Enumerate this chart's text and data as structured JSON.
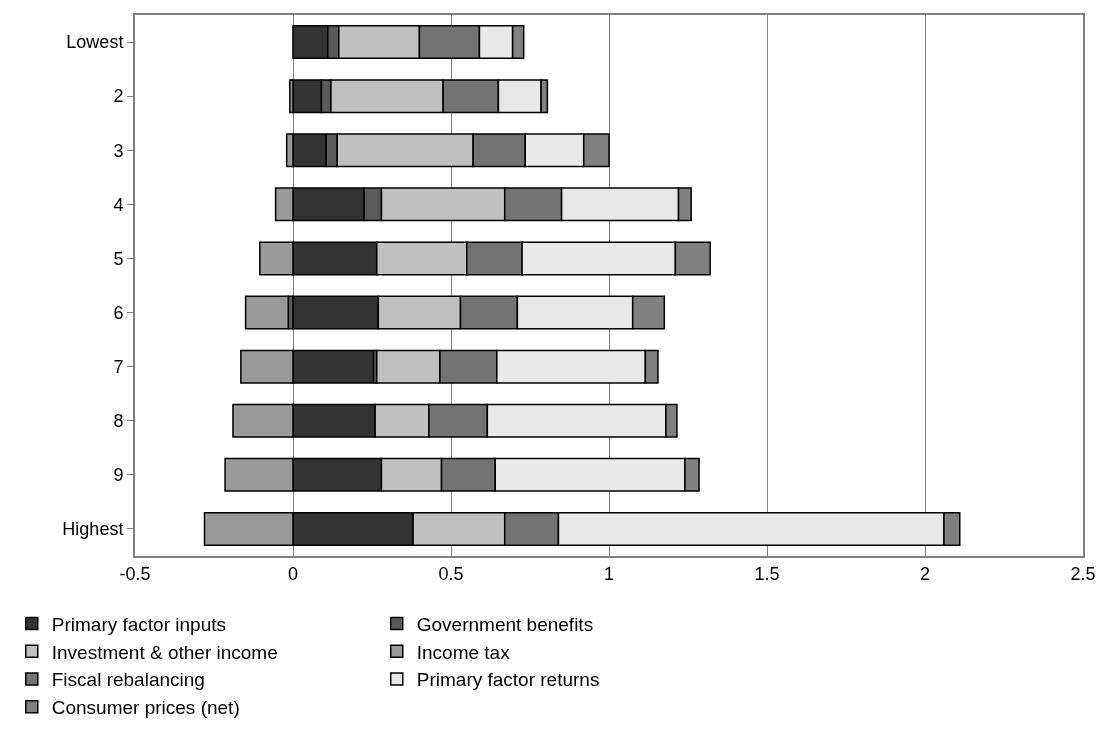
{
  "chart_data": {
    "type": "bar",
    "orientation": "horizontal",
    "stacked": true,
    "categories": [
      "Lowest",
      "2",
      "3",
      "4",
      "5",
      "6",
      "7",
      "8",
      "9",
      "Highest"
    ],
    "series": [
      {
        "name": "Primary factor inputs",
        "color": "#333333",
        "values": [
          0.11,
          0.09,
          0.105,
          0.225,
          0.265,
          0.27,
          0.255,
          0.26,
          0.28,
          0.38
        ]
      },
      {
        "name": "Government benefits",
        "color": "#5a5a5a",
        "values": [
          0.035,
          0.03,
          0.035,
          0.055,
          null,
          -0.015,
          0.01,
          null,
          null,
          null
        ]
      },
      {
        "name": "Investment & other income",
        "color": "#c0c0c0",
        "values": [
          0.255,
          0.355,
          0.43,
          0.39,
          0.285,
          0.26,
          0.2,
          0.17,
          0.19,
          0.29
        ]
      },
      {
        "name": "Income tax",
        "color": "#9a9a9a",
        "values": [
          null,
          -0.01,
          -0.02,
          -0.055,
          -0.105,
          -0.135,
          -0.165,
          -0.19,
          -0.215,
          -0.28
        ]
      },
      {
        "name": "Fiscal rebalancing",
        "color": "#737373",
        "values": [
          0.19,
          0.175,
          0.165,
          0.18,
          0.175,
          0.18,
          0.18,
          0.185,
          0.17,
          0.17
        ]
      },
      {
        "name": "Primary factor returns",
        "color": "#e8e8e8",
        "values": [
          0.105,
          0.135,
          0.185,
          0.37,
          0.485,
          0.365,
          0.47,
          0.565,
          0.6,
          1.22
        ]
      },
      {
        "name": "Consumer prices (net)",
        "color": "#808080",
        "values": [
          0.035,
          0.02,
          0.08,
          0.04,
          0.11,
          0.1,
          0.04,
          0.035,
          0.045,
          0.05
        ]
      }
    ],
    "xlim": [
      -0.5,
      2.5
    ],
    "xticks": [
      -0.5,
      0,
      0.5,
      1,
      1.5,
      2,
      2.5
    ],
    "grid": "x",
    "legend": "bottom"
  }
}
